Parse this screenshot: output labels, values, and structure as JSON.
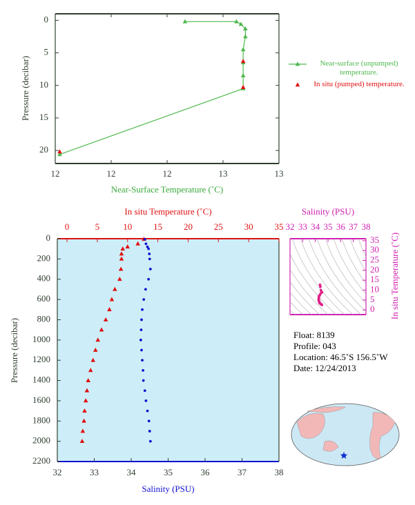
{
  "chart_data": [
    {
      "type": "line",
      "xlabel": "Near-Surface Temperature (˚C)",
      "ylabel": "Pressure (decibar)",
      "xlim": [
        11.9,
        12.9
      ],
      "xticks": [
        {
          "value": 11.9,
          "label": "12"
        },
        {
          "value": 12.15,
          "label": "12"
        },
        {
          "value": 12.4,
          "label": "12"
        },
        {
          "value": 12.65,
          "label": "13"
        },
        {
          "value": 12.9,
          "label": "13"
        }
      ],
      "ylim": [
        -1,
        22
      ],
      "yticks": [
        0,
        5,
        10,
        15,
        20
      ],
      "series": [
        {
          "name": "Near-surface (unpumped) temperature.",
          "color": "#4db84d",
          "marker": "triangle",
          "line": true,
          "x": [
            12.48,
            12.71,
            12.73,
            12.75,
            12.75,
            12.74,
            12.74,
            12.74,
            12.74,
            11.92
          ],
          "values": [
            0.2,
            0.2,
            0.6,
            1.3,
            2.5,
            4.5,
            6.5,
            8.5,
            10.5,
            20.6
          ]
        },
        {
          "name": "In situ (pumped) temperature.",
          "color": "#e01010",
          "marker": "triangle",
          "line": false,
          "x": [
            12.74,
            12.74,
            11.92
          ],
          "values": [
            6.3,
            10.3,
            20.2
          ]
        }
      ]
    },
    {
      "type": "scatter",
      "xlabel": "Salinity (PSU)",
      "x2label": "In situ Temperature (˚C)",
      "ylabel": "Pressure (decibar)",
      "xlim": [
        32,
        38
      ],
      "xticks": [
        32,
        33,
        34,
        35,
        36,
        37,
        38
      ],
      "x2lim": [
        -1.6,
        35
      ],
      "x2ticks": [
        0,
        5,
        10,
        15,
        20,
        25,
        30,
        35
      ],
      "ylim": [
        0,
        2200
      ],
      "yticks": [
        0,
        200,
        400,
        600,
        800,
        1000,
        1200,
        1400,
        1600,
        1800,
        2000,
        2200
      ],
      "background": "#cdeef8",
      "series": [
        {
          "color": "#e01010",
          "marker": "triangle",
          "axis": "x2",
          "x": [
            12.7,
            11.7,
            10.0,
            9.2,
            9.0,
            9.0,
            8.9,
            8.7,
            7.9,
            7.4,
            7.0,
            6.4,
            5.7,
            5.1,
            4.7,
            4.3,
            3.9,
            3.5,
            3.3,
            3.1,
            2.9,
            2.8,
            2.6,
            2.5
          ],
          "values": [
            5,
            50,
            80,
            100,
            150,
            200,
            300,
            400,
            500,
            600,
            700,
            800,
            900,
            1000,
            1100,
            1200,
            1300,
            1400,
            1500,
            1600,
            1700,
            1800,
            1900,
            2000
          ]
        },
        {
          "color": "#1010d0",
          "marker": "circle",
          "x": [
            34.37,
            34.4,
            34.44,
            34.47,
            34.49,
            34.5,
            34.52,
            34.47,
            34.39,
            34.34,
            34.3,
            34.28,
            34.27,
            34.26,
            34.28,
            34.3,
            34.32,
            34.33,
            34.37,
            34.4,
            34.44,
            34.48,
            34.5,
            34.52
          ],
          "values": [
            5,
            50,
            80,
            100,
            150,
            200,
            300,
            400,
            500,
            600,
            700,
            800,
            900,
            1000,
            1100,
            1200,
            1300,
            1400,
            1500,
            1600,
            1700,
            1800,
            1900,
            2000
          ]
        }
      ]
    },
    {
      "type": "scatter",
      "xlabel": "Salinity (PSU)",
      "ylabel": "In situ Temperature (˚C)",
      "xlim": [
        32,
        38
      ],
      "xticks": [
        32,
        33,
        34,
        35,
        36,
        37,
        38
      ],
      "ylim": [
        -2.4,
        36
      ],
      "yticks": [
        0,
        5,
        10,
        15,
        20,
        25,
        30,
        35
      ],
      "series": [
        {
          "color": "#e0208a",
          "marker": "circle",
          "x": [
            34.37,
            34.4,
            34.44,
            34.47,
            34.49,
            34.5,
            34.52,
            34.47,
            34.39,
            34.34,
            34.3,
            34.28,
            34.27,
            34.26,
            34.28,
            34.3,
            34.32,
            34.33,
            34.37,
            34.4,
            34.44,
            34.48,
            34.5,
            34.52
          ],
          "values": [
            12.7,
            11.7,
            10.0,
            9.2,
            9.0,
            9.0,
            8.9,
            8.7,
            7.9,
            7.4,
            7.0,
            6.4,
            5.7,
            5.1,
            4.7,
            4.3,
            3.9,
            3.5,
            3.3,
            3.1,
            2.9,
            2.8,
            2.6,
            2.5
          ]
        }
      ]
    }
  ],
  "float_info": {
    "float": "Float:  8139",
    "profile": "Profile:  043",
    "location": "Location:  46.5˚S  156.5˚W",
    "date": "Date:  12/24/2013"
  }
}
